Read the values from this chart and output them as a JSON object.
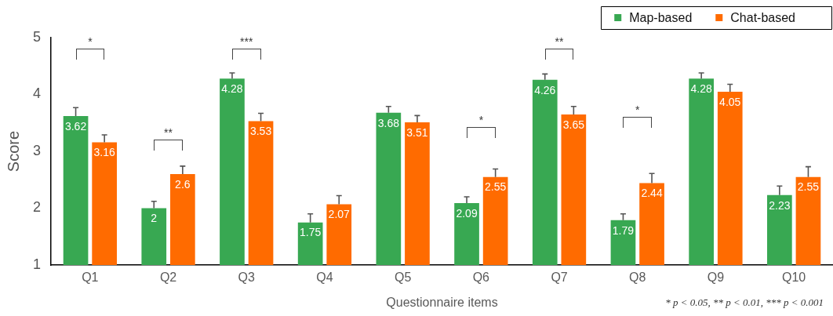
{
  "chart_data": {
    "type": "bar",
    "categories": [
      "Q1",
      "Q2",
      "Q3",
      "Q4",
      "Q5",
      "Q6",
      "Q7",
      "Q8",
      "Q9",
      "Q10"
    ],
    "series": [
      {
        "name": "Map-based",
        "color": "#38a852",
        "values": [
          3.62,
          2,
          4.28,
          1.75,
          3.68,
          2.09,
          4.26,
          1.79,
          4.28,
          2.23
        ],
        "errors": [
          [
            3.62,
            3.77
          ],
          [
            2,
            2.12
          ],
          [
            4.28,
            4.38
          ],
          [
            1.75,
            1.9
          ],
          [
            3.68,
            3.79
          ],
          [
            2.09,
            2.2
          ],
          [
            4.26,
            4.36
          ],
          [
            1.79,
            1.9
          ],
          [
            4.28,
            4.38
          ],
          [
            2.23,
            2.39
          ]
        ]
      },
      {
        "name": "Chat-based",
        "color": "#ff6b00",
        "values": [
          3.16,
          2.6,
          3.53,
          2.07,
          3.51,
          2.55,
          3.65,
          2.44,
          4.05,
          2.55
        ],
        "errors": [
          [
            3.16,
            3.29
          ],
          [
            2.6,
            2.74
          ],
          [
            3.53,
            3.67
          ],
          [
            2.07,
            2.22
          ],
          [
            3.51,
            3.63
          ],
          [
            2.55,
            2.69
          ],
          [
            3.65,
            3.79
          ],
          [
            2.44,
            2.61
          ],
          [
            4.05,
            4.18
          ],
          [
            2.55,
            2.73
          ]
        ]
      }
    ],
    "xlabel": "Questionnaire items",
    "ylabel": "Score",
    "ylim": [
      1,
      5
    ],
    "yticks": [
      1,
      2,
      3,
      4,
      5
    ],
    "legend": "top right",
    "data_labels": true,
    "annotations": [
      "*",
      "**",
      "***",
      "*",
      "**",
      "*",
      "* p < 0.05, ** p < 0.01, *** p < 0.001"
    ]
  }
}
